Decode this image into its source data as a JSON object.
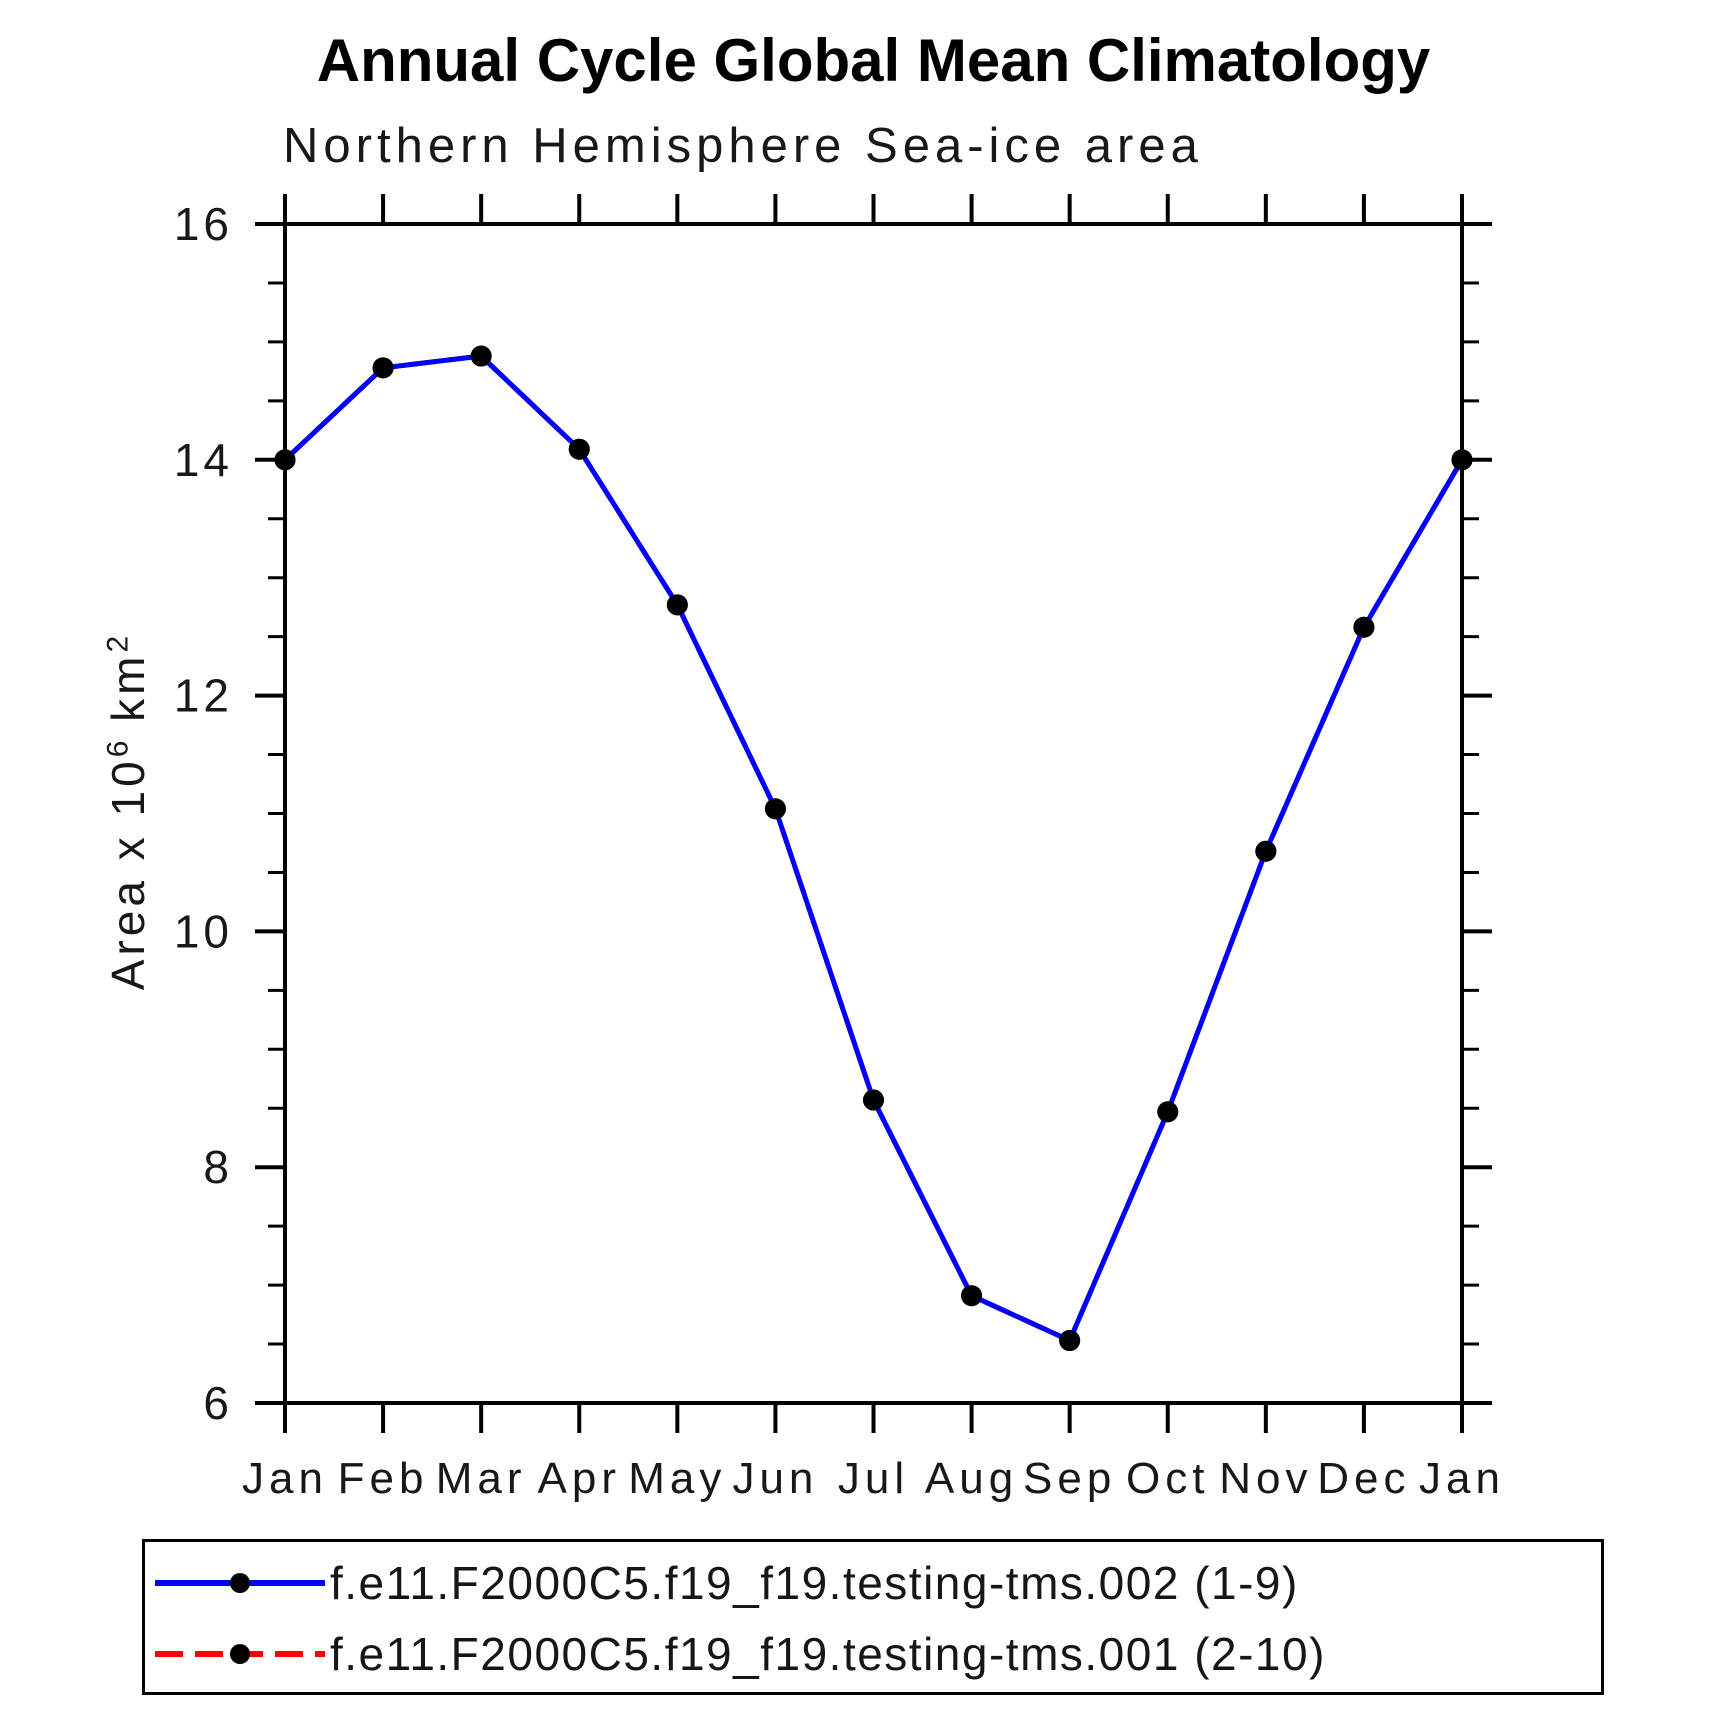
{
  "title": "Annual Cycle Global Mean Climatology",
  "subtitle": "Northern Hemisphere Sea-ice area",
  "y_axis_label": {
    "prefix": "Area x 10",
    "sup1": "6",
    "mid": " km",
    "sup2": "2"
  },
  "chart_data": {
    "type": "line",
    "categories": [
      "Jan",
      "Feb",
      "Mar",
      "Apr",
      "May",
      "Jun",
      "Jul",
      "Aug",
      "Sep",
      "Oct",
      "Nov",
      "Dec",
      "Jan"
    ],
    "ylim": [
      6,
      16
    ],
    "ytick_major_step": 2,
    "ytick_minor_step": 0.5,
    "y_major_tick_labels": [
      "6",
      "8",
      "10",
      "12",
      "14",
      "16"
    ],
    "grid": "off",
    "legend_position": "bottom",
    "series": [
      {
        "name": "f.e11.F2000C5.f19_f19.testing-tms.002 (1-9)",
        "color": "#0000ff",
        "line_style": "solid",
        "marker": "circle",
        "marker_color": "#000000",
        "values": [
          14.0,
          14.78,
          14.88,
          14.09,
          12.77,
          11.04,
          8.57,
          6.91,
          6.53,
          8.47,
          10.68,
          12.58,
          14.0
        ]
      },
      {
        "name": "f.e11.F2000C5.f19_f19.testing-tms.001 (2-10)",
        "color": "#ff0000",
        "line_style": "dashed",
        "marker": "circle",
        "marker_color": "#000000",
        "values": [
          14.0,
          14.78,
          14.88,
          14.09,
          12.77,
          11.04,
          8.57,
          6.91,
          6.53,
          8.47,
          10.68,
          12.58,
          14.0
        ]
      }
    ]
  }
}
